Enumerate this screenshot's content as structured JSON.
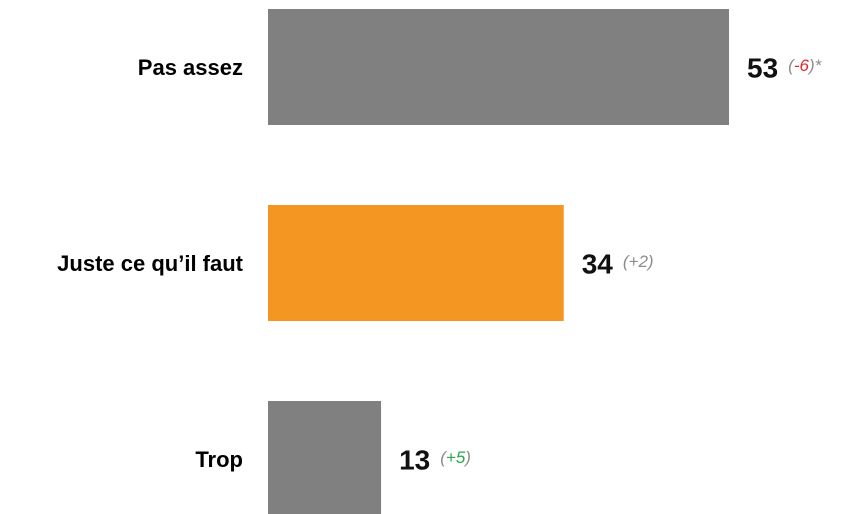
{
  "chart_data": {
    "type": "bar",
    "orientation": "horizontal",
    "categories": [
      "Pas assez",
      "Juste ce qu’il faut",
      "Trop"
    ],
    "values": [
      53,
      34,
      13
    ],
    "colors": [
      "#808080",
      "#f39622",
      "#808080"
    ],
    "annotations": [
      [
        {
          "text": "(",
          "color": "#8c8c8c"
        },
        {
          "text": "-6",
          "color": "#e2262b"
        },
        {
          "text": ")*",
          "color": "#8c8c8c"
        }
      ],
      [
        {
          "text": "(+2)",
          "color": "#8c8c8c"
        }
      ],
      [
        {
          "text": "(",
          "color": "#8c8c8c"
        },
        {
          "text": "+5",
          "color": "#2aa84a"
        },
        {
          "text": ")",
          "color": "#8c8c8c"
        }
      ]
    ]
  }
}
